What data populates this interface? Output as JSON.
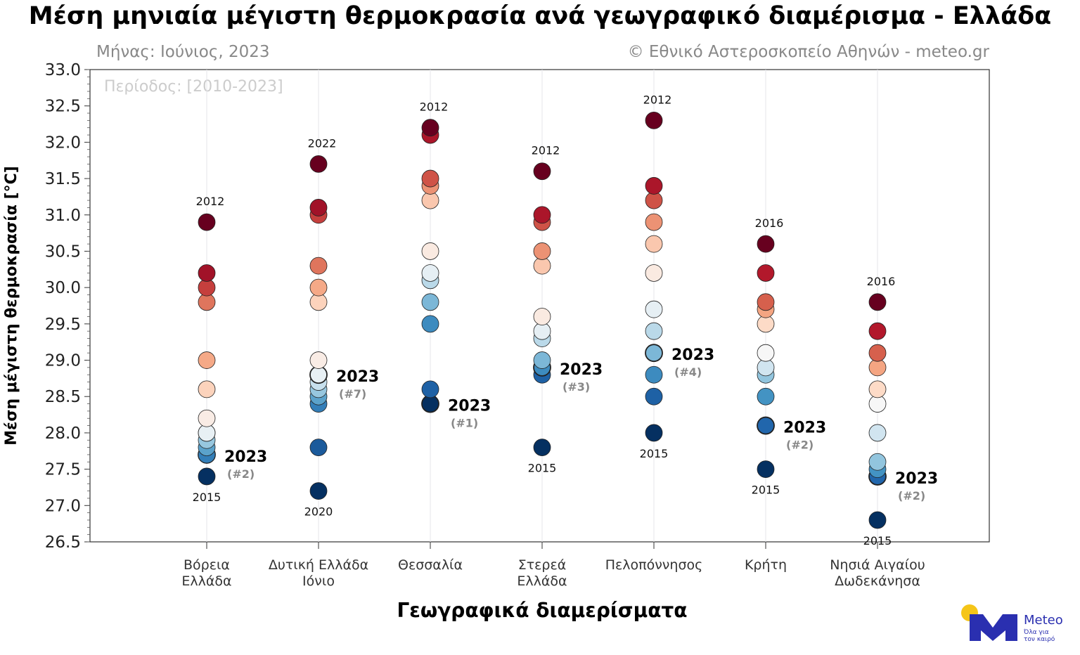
{
  "chart_data": {
    "type": "scatter",
    "title": "Μέση μηνιαία μέγιστη θερμοκρασία ανά γεωγραφικό διαμέρισμα - Ελλάδα",
    "subtitle_left": "Μήνας: Ιούνιος, 2023",
    "subtitle_right": "© Εθνικό Αστεροσκοπείο Αθηνών - meteo.gr",
    "period": "Περίοδος: [2010-2023]",
    "xlabel": "Γεωγραφικά διαμερίσματα",
    "ylabel": "Μέση μέγιστη θερμοκρασία [°C]",
    "ylim": [
      26.5,
      33.0
    ],
    "yticks": [
      "26.5",
      "27.0",
      "27.5",
      "28.0",
      "28.5",
      "29.0",
      "29.5",
      "30.0",
      "30.5",
      "31.0",
      "31.5",
      "32.0",
      "32.5",
      "33.0"
    ],
    "colors": [
      "#053061",
      "#2166ac",
      "#4393c3",
      "#92c5de",
      "#d1e5f0",
      "#f7f7f7",
      "#fddbc7",
      "#f4a582",
      "#d6604d",
      "#b2182b",
      "#67001f"
    ],
    "categories": [
      {
        "label": [
          "Βόρεια",
          "Ελλάδα"
        ],
        "values": [
          30.9,
          30.2,
          30.0,
          29.8,
          29.0,
          28.6,
          28.2,
          28.0,
          28.0,
          27.9,
          27.8,
          27.7,
          27.7,
          27.4
        ],
        "max_year": "2012",
        "min_year": "2015",
        "v2023": 27.7,
        "rank2023": "(#2)"
      },
      {
        "label": [
          "Δυτική Ελλάδα",
          "Ιόνιο"
        ],
        "values": [
          31.7,
          31.1,
          31.0,
          30.3,
          30.0,
          29.8,
          29.0,
          28.8,
          28.7,
          28.6,
          28.5,
          28.4,
          27.8,
          27.2
        ],
        "max_year": "2022",
        "min_year": "2020",
        "v2023": 28.8,
        "rank2023": "(#7)"
      },
      {
        "label": [
          "Θεσσαλία"
        ],
        "values": [
          32.2,
          32.1,
          31.5,
          31.4,
          31.2,
          30.5,
          30.2,
          30.1,
          29.8,
          29.5,
          28.6,
          28.4
        ],
        "max_year": "2012",
        "min_year": null,
        "v2023": 28.4,
        "rank2023": "(#1)"
      },
      {
        "label": [
          "Στερεά",
          "Ελλάδα"
        ],
        "values": [
          31.6,
          31.0,
          30.9,
          30.5,
          30.3,
          29.6,
          29.4,
          29.3,
          29.0,
          28.9,
          28.8,
          27.8
        ],
        "max_year": "2012",
        "min_year": "2015",
        "v2023": 28.9,
        "rank2023": "(#3)"
      },
      {
        "label": [
          "Πελοπόννησος"
        ],
        "values": [
          32.3,
          31.4,
          31.2,
          30.9,
          30.6,
          30.2,
          29.7,
          29.4,
          29.1,
          28.8,
          28.5,
          28.0
        ],
        "max_year": "2012",
        "min_year": "2015",
        "v2023": 29.1,
        "rank2023": "(#4)"
      },
      {
        "label": [
          "Κρήτη"
        ],
        "values": [
          30.6,
          30.2,
          29.8,
          29.7,
          29.5,
          29.1,
          28.9,
          28.8,
          28.5,
          28.1,
          27.5
        ],
        "max_year": "2016",
        "min_year": "2015",
        "v2023": 28.1,
        "rank2023": "(#2)"
      },
      {
        "label": [
          "Νησιά Αιγαίου",
          "Δωδεκάνησα"
        ],
        "values": [
          29.8,
          29.4,
          29.1,
          28.9,
          28.6,
          28.4,
          28.0,
          27.6,
          27.5,
          27.4,
          26.8
        ],
        "max_year": "2016",
        "min_year": "2015",
        "v2023": 27.4,
        "rank2023": "(#2)"
      }
    ],
    "label2023": "2023"
  },
  "logo": {
    "name": "Meteo",
    "tagline1": "Όλα για",
    "tagline2": "τον καιρό",
    "brand_color": "#2a2fb0",
    "sun_color": "#f5c518"
  }
}
